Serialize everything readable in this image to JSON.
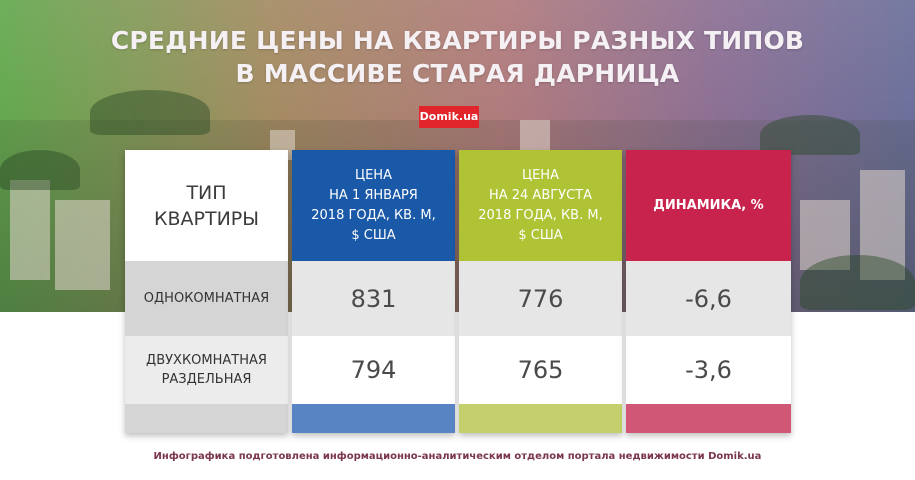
{
  "title": {
    "line1": "СРЕДНИЕ ЦЕНЫ НА КВАРТИРЫ РАЗНЫХ ТИПОВ",
    "line2": "В МАССИВЕ СТАРАЯ ДАРНИЦА"
  },
  "brand": "Domik.ua",
  "table": {
    "headers": {
      "type": [
        "ТИП",
        "КВАРТИРЫ"
      ],
      "jan": [
        "ЦЕНА",
        "НА 1 ЯНВАРЯ",
        "2018 ГОДА, КВ. М,",
        "$ США"
      ],
      "aug": [
        "ЦЕНА",
        "НА 24 АВГУСТА",
        "2018 ГОДА, КВ. М,",
        "$ США"
      ],
      "dyn": "ДИНАМИКА, %"
    },
    "rows": [
      {
        "type": [
          "ОДНОКОМНАТНАЯ"
        ],
        "jan": "831",
        "aug": "776",
        "dyn": "-6,6"
      },
      {
        "type": [
          "ДВУХКОМНАТНАЯ",
          "РАЗДЕЛЬНАЯ"
        ],
        "jan": "794",
        "aug": "765",
        "dyn": "-3,6"
      }
    ]
  },
  "footer": "Инфографика подготовлена информационно-аналитическим отделом портала недвижимости Domik.ua",
  "colors": {
    "jan": "#1a58a8",
    "aug": "#b0c335",
    "dyn": "#c7234d",
    "brand": "#e2242b"
  }
}
